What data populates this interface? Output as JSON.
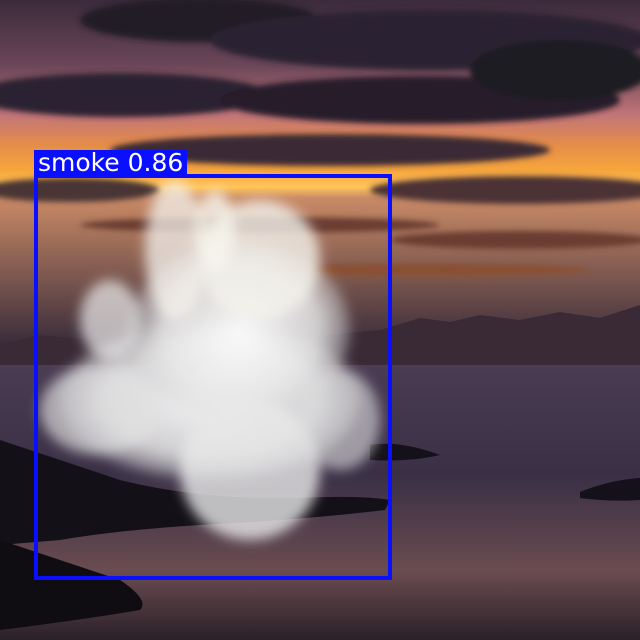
{
  "detection": {
    "class_label": "smoke",
    "confidence": "0.86",
    "box_color": "#0a10ff",
    "label_text_color": "#ffffff"
  },
  "scene": {
    "sky_colors": [
      "#3a2a3a",
      "#c2708a",
      "#f0a040",
      "#ffd070"
    ],
    "water_color": "#2a2438",
    "smoke_color": "#f2f2f2"
  }
}
